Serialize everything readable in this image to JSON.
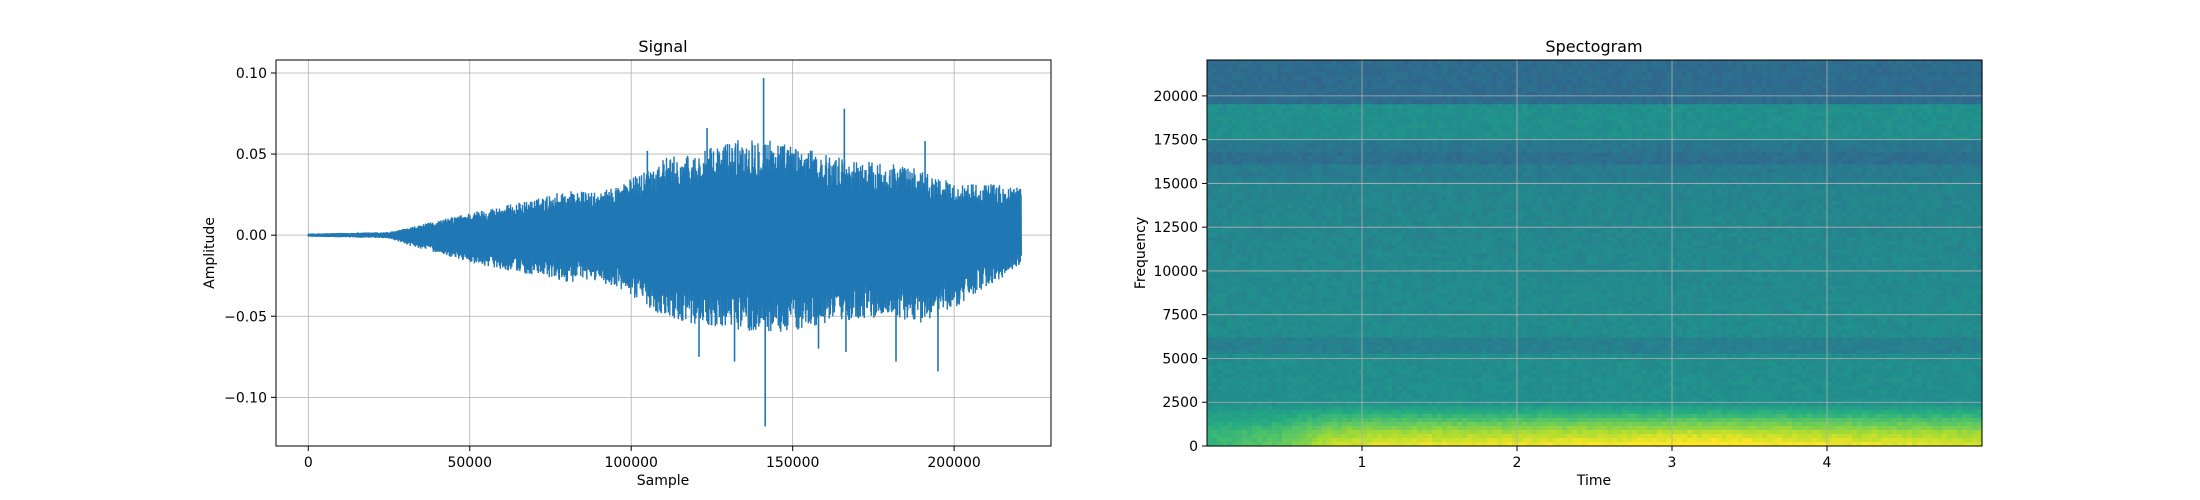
{
  "figure": {
    "background": "#ffffff"
  },
  "chart_data": [
    {
      "type": "line",
      "title": "Signal",
      "xlabel": "Sample",
      "ylabel": "Amplitude",
      "xlim": [
        -10000,
        230000
      ],
      "ylim": [
        -0.13,
        0.108
      ],
      "xticks": [
        0,
        50000,
        100000,
        150000,
        200000
      ],
      "xtick_labels": [
        "0",
        "50000",
        "100000",
        "150000",
        "200000"
      ],
      "yticks": [
        -0.1,
        -0.05,
        0.0,
        0.05,
        0.1
      ],
      "ytick_labels": [
        "−0.10",
        "−0.05",
        "0.00",
        "0.05",
        "0.10"
      ],
      "grid": true,
      "color": "#1f77b4",
      "n_samples": 220500,
      "envelope": {
        "x": [
          0,
          25000,
          30000,
          40000,
          50000,
          60000,
          70000,
          80000,
          90000,
          100000,
          110000,
          120000,
          130000,
          140000,
          150000,
          160000,
          170000,
          180000,
          190000,
          200000,
          210000,
          220000
        ],
        "upper": [
          0.001,
          0.002,
          0.004,
          0.009,
          0.014,
          0.018,
          0.022,
          0.028,
          0.026,
          0.035,
          0.048,
          0.05,
          0.058,
          0.062,
          0.055,
          0.05,
          0.046,
          0.045,
          0.04,
          0.032,
          0.032,
          0.03
        ],
        "lower": [
          -0.001,
          -0.002,
          -0.006,
          -0.011,
          -0.017,
          -0.021,
          -0.025,
          -0.029,
          -0.028,
          -0.038,
          -0.05,
          -0.055,
          -0.058,
          -0.06,
          -0.06,
          -0.055,
          -0.052,
          -0.05,
          -0.055,
          -0.045,
          -0.032,
          -0.02
        ]
      },
      "peaks": [
        {
          "x": 141000,
          "y": 0.097
        },
        {
          "x": 141500,
          "y": -0.118
        },
        {
          "x": 123500,
          "y": 0.066
        },
        {
          "x": 166000,
          "y": 0.078
        },
        {
          "x": 121000,
          "y": -0.075
        },
        {
          "x": 191000,
          "y": 0.058
        },
        {
          "x": 195000,
          "y": -0.084
        },
        {
          "x": 132000,
          "y": -0.078
        },
        {
          "x": 166500,
          "y": -0.072
        },
        {
          "x": 182000,
          "y": -0.078
        },
        {
          "x": 105000,
          "y": 0.052
        },
        {
          "x": 158000,
          "y": -0.07
        }
      ]
    },
    {
      "type": "heatmap",
      "title": "Spectogram",
      "xlabel": "Time",
      "ylabel": "Frequency",
      "xlim": [
        0,
        5
      ],
      "ylim": [
        0,
        22050
      ],
      "xticks": [
        1,
        2,
        3,
        4
      ],
      "xtick_labels": [
        "1",
        "2",
        "3",
        "4"
      ],
      "yticks": [
        0,
        2500,
        5000,
        7500,
        10000,
        12500,
        15000,
        17500,
        20000
      ],
      "ytick_labels": [
        "0",
        "2500",
        "5000",
        "7500",
        "10000",
        "12500",
        "15000",
        "17500",
        "20000"
      ],
      "grid": true,
      "colormap": "viridis",
      "time_loudness": {
        "t": [
          0,
          0.5,
          0.8,
          1.2,
          2.0,
          2.8,
          3.2,
          3.8,
          4.4,
          5.0
        ],
        "level": [
          0.1,
          0.35,
          0.75,
          0.85,
          0.88,
          0.95,
          1.0,
          0.92,
          0.85,
          0.8
        ]
      }
    }
  ]
}
